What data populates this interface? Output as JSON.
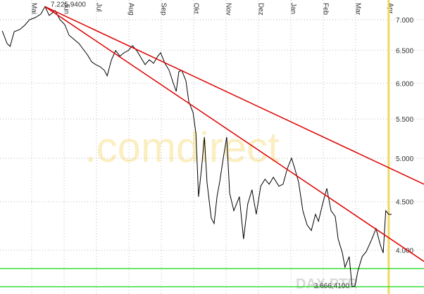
{
  "chart_data": {
    "type": "line",
    "log_scale": true,
    "grid": true,
    "watermark": ".comdirect",
    "instrument_label": "DAX PTR",
    "annotations": [
      "7.225,9400",
      "3.666,4100"
    ],
    "xlim": [
      -0.98,
      12.11
    ],
    "xticks": [
      {
        "value": 0,
        "label": "Mai"
      },
      {
        "value": 1,
        "label": "Jun"
      },
      {
        "value": 2,
        "label": "Jul"
      },
      {
        "value": 3,
        "label": "Aug"
      },
      {
        "value": 4,
        "label": "Sep"
      },
      {
        "value": 5,
        "label": "Okt"
      },
      {
        "value": 6,
        "label": "Nov"
      },
      {
        "value": 7,
        "label": "Dez"
      },
      {
        "value": 8,
        "label": "Jan"
      },
      {
        "value": 9,
        "label": "Feb"
      },
      {
        "value": 10,
        "label": "Mar"
      },
      {
        "value": 11,
        "label": "Apr"
      }
    ],
    "ylim": [
      3596,
      7343
    ],
    "yticks": [
      {
        "value": 4000,
        "label": "4.000"
      },
      {
        "value": 4500,
        "label": "4.500"
      },
      {
        "value": 5000,
        "label": "5.000"
      },
      {
        "value": 5500,
        "label": "5.500"
      },
      {
        "value": 6000,
        "label": "6.000"
      },
      {
        "value": 6500,
        "label": "6.500"
      },
      {
        "value": 7000,
        "label": "7.000"
      }
    ],
    "series": [
      {
        "color": "#000000",
        "x": [
          -0.91,
          -0.76,
          -0.67,
          -0.54,
          -0.37,
          -0.22,
          -0.07,
          0.11,
          0.28,
          0.41,
          0.54,
          0.72,
          0.87,
          1.02,
          1.15,
          1.28,
          1.46,
          1.59,
          1.72,
          1.85,
          1.98,
          2.11,
          2.24,
          2.33,
          2.46,
          2.59,
          2.72,
          2.85,
          2.98,
          3.11,
          3.24,
          3.37,
          3.5,
          3.63,
          3.76,
          3.89,
          3.98,
          4.11,
          4.24,
          4.37,
          4.46,
          4.54,
          4.63,
          4.76,
          4.85,
          4.98,
          5.07,
          5.15,
          5.24,
          5.33,
          5.41,
          5.54,
          5.63,
          5.72,
          5.8,
          5.93,
          6.02,
          6.11,
          6.24,
          6.41,
          6.54,
          6.67,
          6.8,
          6.93,
          7.07,
          7.2,
          7.33,
          7.46,
          7.63,
          7.76,
          7.89,
          8.02,
          8.11,
          8.24,
          8.37,
          8.5,
          8.63,
          8.76,
          8.85,
          8.98,
          9.11,
          9.24,
          9.37,
          9.46,
          9.59,
          9.67,
          9.8,
          9.89,
          9.98,
          10.07,
          10.2,
          10.33,
          10.5,
          10.63,
          10.76,
          10.85,
          10.93,
          11.02,
          11.11
        ],
        "values": [
          6812,
          6605,
          6561,
          6800,
          6835,
          6905,
          7000,
          7036,
          7096,
          7226,
          7072,
          7157,
          7000,
          6917,
          6742,
          6685,
          6605,
          6516,
          6427,
          6319,
          6276,
          6244,
          6191,
          6107,
          6351,
          6494,
          6406,
          6460,
          6494,
          6572,
          6494,
          6384,
          6276,
          6351,
          6297,
          6406,
          6460,
          6297,
          6191,
          6003,
          5881,
          6170,
          6191,
          6034,
          5733,
          5588,
          5309,
          4554,
          4875,
          5265,
          4716,
          4326,
          4267,
          4554,
          4716,
          5044,
          5265,
          4593,
          4402,
          4554,
          4110,
          4477,
          4632,
          4364,
          4672,
          4752,
          4695,
          4775,
          4672,
          4695,
          4875,
          5002,
          4892,
          4716,
          4402,
          4253,
          4196,
          4364,
          4290,
          4477,
          4648,
          4402,
          4341,
          4110,
          3973,
          3838,
          3938,
          3660,
          3666,
          3805,
          3938,
          3987,
          4110,
          4216,
          4053,
          3973,
          4402,
          4364,
          4364
        ]
      }
    ],
    "trendlines": [
      {
        "color": "#dd0000",
        "x": [
          0.41,
          12.11
        ],
        "values": [
          7226,
          4695
        ]
      },
      {
        "color": "#dd0000",
        "x": [
          0.41,
          12.11
        ],
        "values": [
          7226,
          3892
        ]
      }
    ],
    "support_lines": {
      "color": "#33dd33",
      "values": [
        3826,
        3660
      ]
    },
    "marker_line": {
      "color": "#f0d860",
      "x": 11.02
    }
  }
}
